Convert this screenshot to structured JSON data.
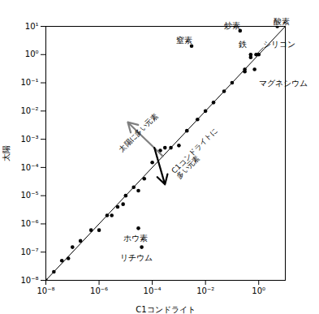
{
  "chart_data": {
    "type": "scatter",
    "xlabel": "C1コンドライト",
    "ylabel": "太陽",
    "log": true,
    "color": "black",
    "xlim": [
      1e-08,
      10
    ],
    "ylim": [
      1e-08,
      10
    ],
    "xticks": [
      {
        "value": 1e-08,
        "label": "10⁻⁸"
      },
      {
        "value": 1e-06,
        "label": "10⁻⁶"
      },
      {
        "value": 0.0001,
        "label": "10⁻⁴"
      },
      {
        "value": 0.01,
        "label": "10⁻²"
      },
      {
        "value": 1,
        "label": "10⁰"
      }
    ],
    "yticks": [
      {
        "value": 1e-08,
        "label": "10⁻⁸"
      },
      {
        "value": 1e-07,
        "label": "10⁻⁷"
      },
      {
        "value": 1e-06,
        "label": "10⁻⁶"
      },
      {
        "value": 1e-05,
        "label": "10⁻⁵"
      },
      {
        "value": 0.0001,
        "label": "10⁻⁴"
      },
      {
        "value": 0.001,
        "label": "10⁻³"
      },
      {
        "value": 0.01,
        "label": "10⁻²"
      },
      {
        "value": 0.1,
        "label": "10⁻¹"
      },
      {
        "value": 1,
        "label": "10⁰"
      },
      {
        "value": 10,
        "label": "10¹"
      }
    ],
    "x": [
      1e-08,
      2e-08,
      4e-08,
      7e-08,
      1e-07,
      2e-07,
      5e-07,
      1e-06,
      2e-06,
      3e-06,
      5e-06,
      8e-06,
      1e-05,
      2e-05,
      3e-05,
      5e-05,
      0.0001,
      0.0002,
      0.0003,
      0.0005,
      0.001,
      0.002,
      0.005,
      0.01,
      0.02,
      0.05,
      0.1,
      0.3,
      0.5,
      1,
      0.3
    ],
    "y": [
      1e-08,
      2e-08,
      5e-08,
      6e-08,
      1.5e-07,
      2.5e-07,
      6e-07,
      6e-07,
      2e-06,
      2e-06,
      4e-06,
      5e-06,
      1e-05,
      2e-05,
      1.5e-05,
      4e-05,
      0.00015,
      0.0004,
      0.0005,
      0.0005,
      0.0006,
      0.002,
      0.005,
      0.01,
      0.02,
      0.05,
      0.1,
      0.3,
      0.8,
      1,
      0.25
    ],
    "diagonal": {
      "x": [
        1e-08,
        10
      ],
      "y": [
        1e-08,
        10
      ]
    },
    "annotations": [
      {
        "text": "酸素",
        "x": 5,
        "y": 10,
        "text_at": [
          3.5,
          12
        ],
        "leader": false
      },
      {
        "text": "炒素",
        "x": 0.2,
        "y": 7.0,
        "text_at": [
          0.05,
          8.5
        ],
        "leader": false
      },
      {
        "text": "窒素",
        "x": 0.003,
        "y": 2.0,
        "text_at": [
          0.0008,
          2.5
        ],
        "leader": false
      },
      {
        "text": "鉄",
        "x": 0.5,
        "y": 1.0,
        "text_at": [
          0.18,
          1.8
        ],
        "leader": false
      },
      {
        "text": "シリコン",
        "x": 0.8,
        "y": 1.0,
        "text_at": [
          1.5,
          1.8
        ],
        "leader": true
      },
      {
        "text": "マグネシウム",
        "x": 0.7,
        "y": 0.3,
        "text_at": [
          1.0,
          0.12
        ],
        "leader": false
      },
      {
        "text": "ホウ素",
        "x": 3e-05,
        "y": 7e-07,
        "text_at": [
          8e-06,
          4e-07
        ],
        "leader": false
      },
      {
        "text": "リチウム",
        "x": 4e-05,
        "y": 1.5e-07,
        "text_at": [
          6e-06,
          8e-08
        ],
        "leader": false
      }
    ],
    "arrows": [
      {
        "from": [
          0.00025,
          0.00025
        ],
        "to": [
          1.2e-05,
          0.004
        ],
        "color": "gray"
      },
      {
        "from": [
          0.00012,
          0.0005
        ],
        "to": [
          0.0003,
          2.5e-05
        ],
        "color": "black"
      }
    ],
    "arrow_labels": [
      {
        "text": "太陽に多い元素",
        "x": 3.5e-05,
        "y": 0.0015
      },
      {
        "text": "C1コンドライトに\n多い元素",
        "x": 0.0005,
        "y": 8e-05
      }
    ]
  }
}
